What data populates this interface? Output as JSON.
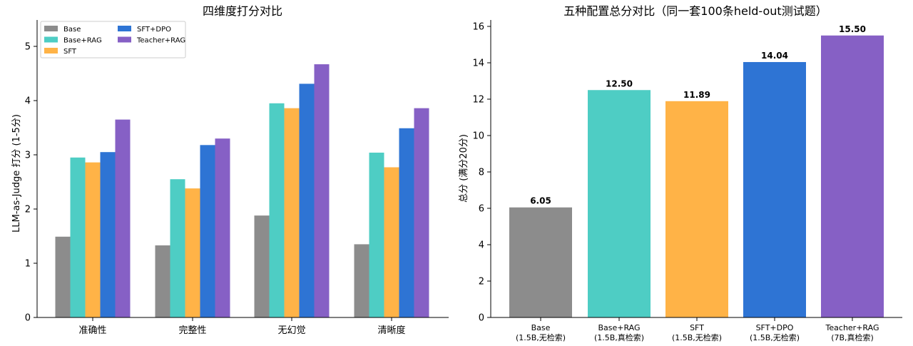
{
  "charts": {
    "left": {
      "title": "四维度打分对比",
      "ylabel": "LLM-as-Judge 打分 (1-5分)",
      "yticks": [
        "0",
        "1",
        "2",
        "3",
        "4",
        "5"
      ]
    },
    "right": {
      "title": "五种配置总分对比（同一套100条held-out测试题）",
      "ylabel": "总分 (满分20分)",
      "yticks": [
        "0",
        "2",
        "4",
        "6",
        "8",
        "10",
        "12",
        "14",
        "16"
      ],
      "value_labels": [
        "6.05",
        "12.50",
        "11.89",
        "14.04",
        "15.50"
      ],
      "category_lines": [
        [
          "Base",
          "(1.5B,无检索)"
        ],
        [
          "Base+RAG",
          "(1.5B,真检索)"
        ],
        [
          "SFT",
          "(1.5B,无检索)"
        ],
        [
          "SFT+DPO",
          "(1.5B,无检索)"
        ],
        [
          "Teacher+RAG",
          "(7B,真检索)"
        ]
      ]
    }
  },
  "chart_data": [
    {
      "type": "bar",
      "title": "四维度打分对比",
      "xlabel": "",
      "ylabel": "LLM-as-Judge 打分 (1-5分)",
      "ylim": [
        0,
        5.5
      ],
      "categories": [
        "准确性",
        "完整性",
        "无幻觉",
        "清晰度"
      ],
      "legend_position": "top-left",
      "grid": false,
      "series": [
        {
          "name": "Base",
          "color": "#8c8c8c",
          "values": [
            1.49,
            1.33,
            1.88,
            1.35
          ]
        },
        {
          "name": "Base+RAG",
          "color": "#4ecdc4",
          "values": [
            2.95,
            2.55,
            3.95,
            3.04
          ]
        },
        {
          "name": "SFT",
          "color": "#ffb347",
          "values": [
            2.86,
            2.38,
            3.86,
            2.77
          ]
        },
        {
          "name": "SFT+DPO",
          "color": "#2e74d4",
          "values": [
            3.05,
            3.18,
            4.31,
            3.49
          ]
        },
        {
          "name": "Teacher+RAG",
          "color": "#8660c5",
          "values": [
            3.65,
            3.3,
            4.67,
            3.86
          ]
        }
      ]
    },
    {
      "type": "bar",
      "title": "五种配置总分对比（同一套100条held-out测试题）",
      "xlabel": "",
      "ylabel": "总分 (满分20分)",
      "ylim": [
        0,
        16.3
      ],
      "grid": false,
      "categories": [
        "Base (1.5B,无检索)",
        "Base+RAG (1.5B,真检索)",
        "SFT (1.5B,无检索)",
        "SFT+DPO (1.5B,无检索)",
        "Teacher+RAG (7B,真检索)"
      ],
      "values": [
        6.05,
        12.5,
        11.89,
        14.04,
        15.5
      ],
      "colors": [
        "#8c8c8c",
        "#4ecdc4",
        "#ffb347",
        "#2e74d4",
        "#8660c5"
      ]
    }
  ]
}
